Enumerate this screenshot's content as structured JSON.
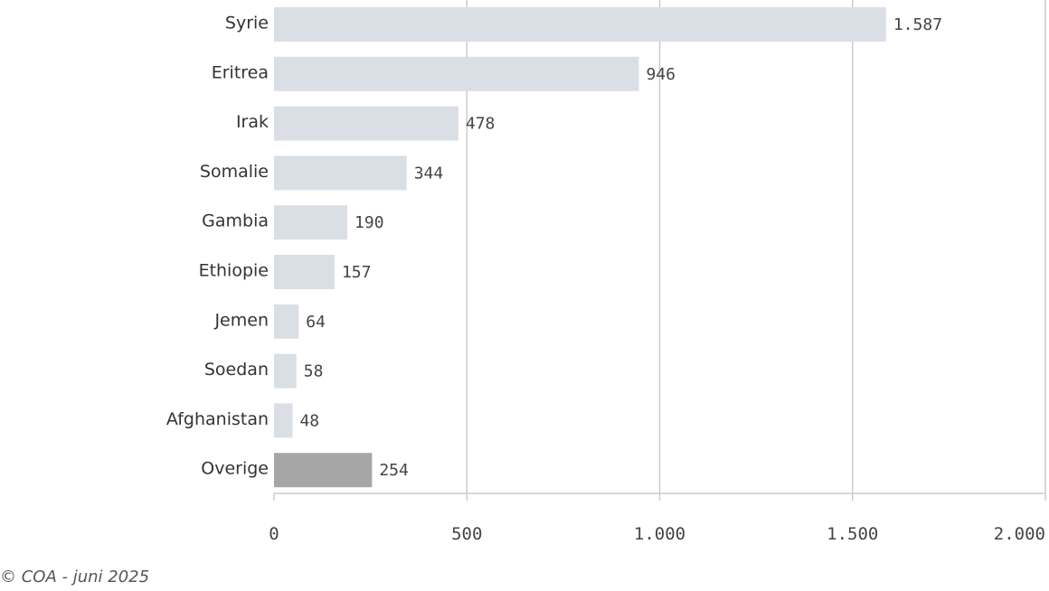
{
  "chart_data": {
    "type": "bar",
    "orientation": "horizontal",
    "categories": [
      "Syrie",
      "Eritrea",
      "Irak",
      "Somalie",
      "Gambia",
      "Ethiopie",
      "Jemen",
      "Soedan",
      "Afghanistan",
      "Overige"
    ],
    "values": [
      1587,
      946,
      478,
      344,
      190,
      157,
      64,
      58,
      48,
      254
    ],
    "value_labels": [
      "1.587",
      "946",
      "478",
      "344",
      "190",
      "157",
      "64",
      "58",
      "48",
      "254"
    ],
    "bar_colors": [
      "#d9dfe5",
      "#d9dfe5",
      "#d9dfe5",
      "#d9dfe5",
      "#d9dfe5",
      "#d9dfe5",
      "#d9dfe5",
      "#d9dfe5",
      "#d9dfe5",
      "#a6a6a6"
    ],
    "xlim": [
      0,
      2000
    ],
    "xticks": [
      0,
      500,
      1000,
      1500,
      2000
    ],
    "xtick_labels": [
      "0",
      "500",
      "1.000",
      "1.500",
      "2.000"
    ],
    "grid": true,
    "title": "",
    "xlabel": "",
    "ylabel": ""
  },
  "footer": {
    "credit": "© COA - juni 2025"
  }
}
